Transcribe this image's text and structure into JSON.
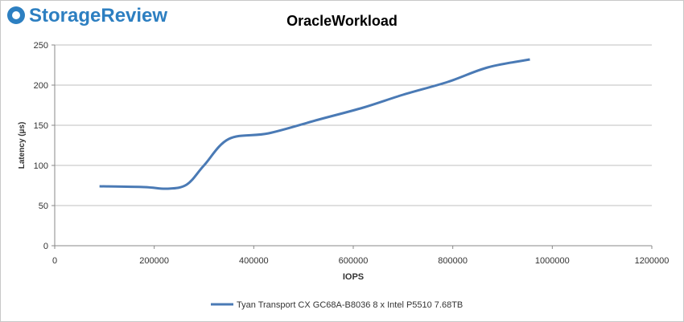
{
  "logo": "StorageReview",
  "chart_data": {
    "type": "line",
    "title": "OracleWorkload",
    "x_label": "IOPS",
    "y_label": "Latency (µs)",
    "x": [
      90000,
      180000,
      225000,
      265000,
      300000,
      350000,
      430000,
      530000,
      620000,
      700000,
      790000,
      870000,
      955000
    ],
    "series": [
      {
        "name": "Tyan Transport CX GC68A-B8036 8 x Intel P5510 7.68TB",
        "color": "#4a7ab5",
        "values": [
          74,
          73,
          71,
          76,
          100,
          133,
          140,
          157,
          172,
          188,
          204,
          222,
          232
        ]
      }
    ],
    "xlim": [
      0,
      1200000
    ],
    "xticks": [
      0,
      200000,
      400000,
      600000,
      800000,
      1000000,
      1200000
    ],
    "ylim": [
      0,
      250
    ],
    "yticks": [
      0,
      50,
      100,
      150,
      200,
      250
    ],
    "grid": true,
    "legend": "bottom"
  }
}
